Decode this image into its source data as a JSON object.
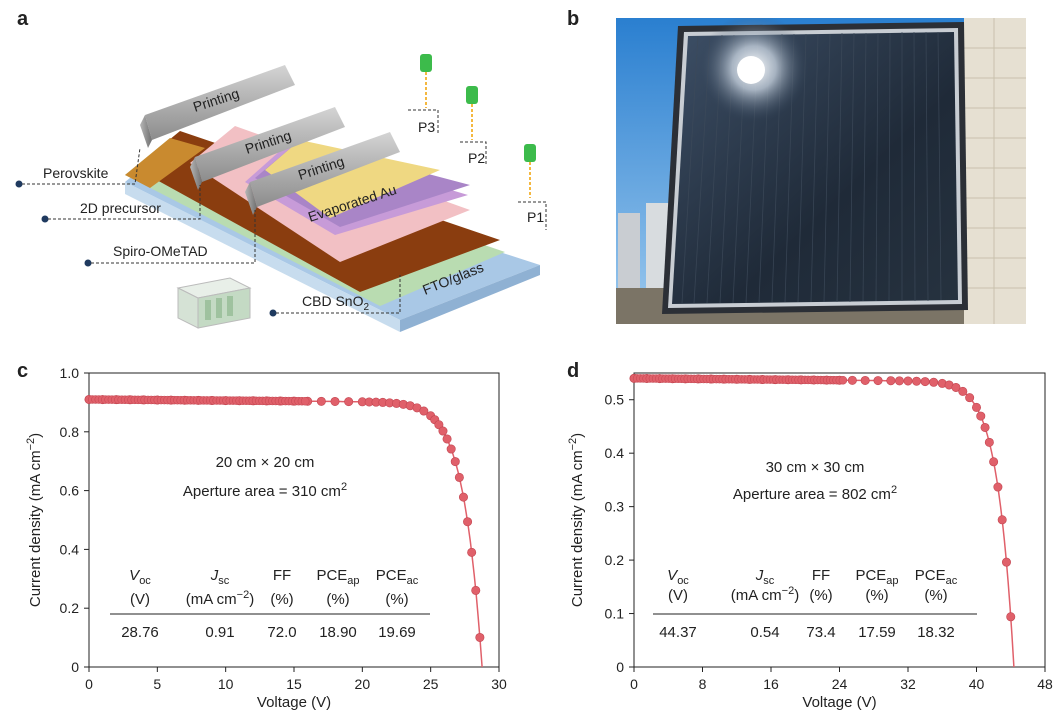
{
  "panels": {
    "a": {
      "letter": "a",
      "printing": [
        "Printing",
        "Printing",
        "Printing"
      ],
      "evaporated_au": "Evaporated Au",
      "fto_glass": "FTO/glass",
      "perovskite": "Perovskite",
      "precursor_2d": "2D precursor",
      "spiro": "Spiro-OMeTAD",
      "cbd_sno2_base": "CBD SnO",
      "cbd_sno2_sub": "2",
      "scribes": [
        "P3",
        "P2",
        "P1"
      ],
      "colors": {
        "glass": "#a9c8e6",
        "sno2": "#b9dcb1",
        "perovskite": "#8a3d0f",
        "spiro": "#f2c0c4",
        "precursor": "#c79bd8",
        "gold": "#efd882",
        "laser": "#3cbb4b"
      }
    },
    "b": {
      "letter": "b",
      "description_icon": "module-photo"
    }
  },
  "chart_data": [
    {
      "panel_letter": "c",
      "type": "scatter",
      "xlabel": "Voltage (V)",
      "ylabel_base": "Current density (mA cm",
      "ylabel_sup": "−2",
      "ylabel_end": ")",
      "xlim": [
        0,
        30
      ],
      "ylim": [
        0,
        1.0
      ],
      "xticks": [
        0,
        5,
        10,
        15,
        20,
        25,
        30
      ],
      "xtick_labels": [
        "0",
        "5",
        "10",
        "15",
        "20",
        "25",
        "30"
      ],
      "yticks": [
        0,
        0.2,
        0.4,
        0.6,
        0.8,
        1.0
      ],
      "ytick_labels": [
        "0",
        "0.2",
        "0.4",
        "0.6",
        "0.8",
        "1.0"
      ],
      "voc": 28.76,
      "jsc": 0.91,
      "ff": 0.72,
      "annotation_size": "20 cm × 20 cm",
      "annotation_area_base": "Aperture area = 310 cm",
      "annotation_area_sup": "2",
      "table_headers": [
        {
          "base": "V",
          "sub": "oc",
          "italic": true,
          "unit": "(V)",
          "unit_sup": ""
        },
        {
          "base": "J",
          "sub": "sc",
          "italic": true,
          "unit": "(mA cm",
          "unit_sup": "−2"
        },
        {
          "base": "FF",
          "sub": "",
          "italic": false,
          "unit": "(%)",
          "unit_sup": ""
        },
        {
          "base": "PCE",
          "sub": "ap",
          "italic": false,
          "unit": "(%)",
          "unit_sup": ""
        },
        {
          "base": "PCE",
          "sub": "ac",
          "italic": false,
          "unit": "(%)",
          "unit_sup": ""
        }
      ],
      "table_values": [
        "28.76",
        "0.91",
        "72.0",
        "18.90",
        "19.69"
      ],
      "series_color": "#e0606a",
      "marker_x": [
        0,
        1,
        2,
        3,
        4,
        5,
        6,
        7,
        8,
        9,
        10,
        11,
        12,
        13,
        14,
        15,
        16,
        17,
        18,
        19,
        20,
        20.5,
        21,
        21.5,
        22,
        22.5,
        23,
        23.5,
        24,
        24.5,
        25,
        25.3,
        25.6,
        25.9,
        26.2,
        26.5,
        26.8,
        27.1,
        27.4,
        27.7,
        28.0,
        28.3,
        28.6
      ]
    },
    {
      "panel_letter": "d",
      "type": "scatter",
      "xlabel": "Voltage (V)",
      "ylabel_base": "Current density (mA cm",
      "ylabel_sup": "−2",
      "ylabel_end": ")",
      "xlim": [
        0,
        48
      ],
      "ylim": [
        0,
        0.55
      ],
      "xticks": [
        0,
        8,
        16,
        24,
        32,
        40,
        48
      ],
      "xtick_labels": [
        "0",
        "8",
        "16",
        "24",
        "32",
        "40",
        "48"
      ],
      "yticks": [
        0,
        0.1,
        0.2,
        0.3,
        0.4,
        0.5
      ],
      "ytick_labels": [
        "0",
        "0.1",
        "0.2",
        "0.3",
        "0.4",
        "0.5"
      ],
      "voc": 44.37,
      "jsc": 0.54,
      "ff": 0.734,
      "annotation_size": "30 cm × 30 cm",
      "annotation_area_base": "Aperture area = 802 cm",
      "annotation_area_sup": "2",
      "table_headers": [
        {
          "base": "V",
          "sub": "oc",
          "italic": true,
          "unit": "(V)",
          "unit_sup": ""
        },
        {
          "base": "J",
          "sub": "sc",
          "italic": true,
          "unit": "(mA cm",
          "unit_sup": "−2"
        },
        {
          "base": "FF",
          "sub": "",
          "italic": false,
          "unit": "(%)",
          "unit_sup": ""
        },
        {
          "base": "PCE",
          "sub": "ap",
          "italic": false,
          "unit": "(%)",
          "unit_sup": ""
        },
        {
          "base": "PCE",
          "sub": "ac",
          "italic": false,
          "unit": "(%)",
          "unit_sup": ""
        }
      ],
      "table_values": [
        "44.37",
        "0.54",
        "73.4",
        "17.59",
        "18.32"
      ],
      "series_color": "#e0606a",
      "marker_x": [
        0,
        1.5,
        3,
        4.5,
        6,
        7.5,
        9,
        10.5,
        12,
        13.5,
        15,
        16.5,
        18,
        19.5,
        21,
        22.5,
        24,
        25.5,
        27,
        28.5,
        30,
        31,
        32,
        33,
        34,
        35,
        36,
        36.8,
        37.6,
        38.4,
        39.2,
        40,
        40.5,
        41,
        41.5,
        42,
        42.5,
        43,
        43.5,
        44
      ]
    }
  ]
}
